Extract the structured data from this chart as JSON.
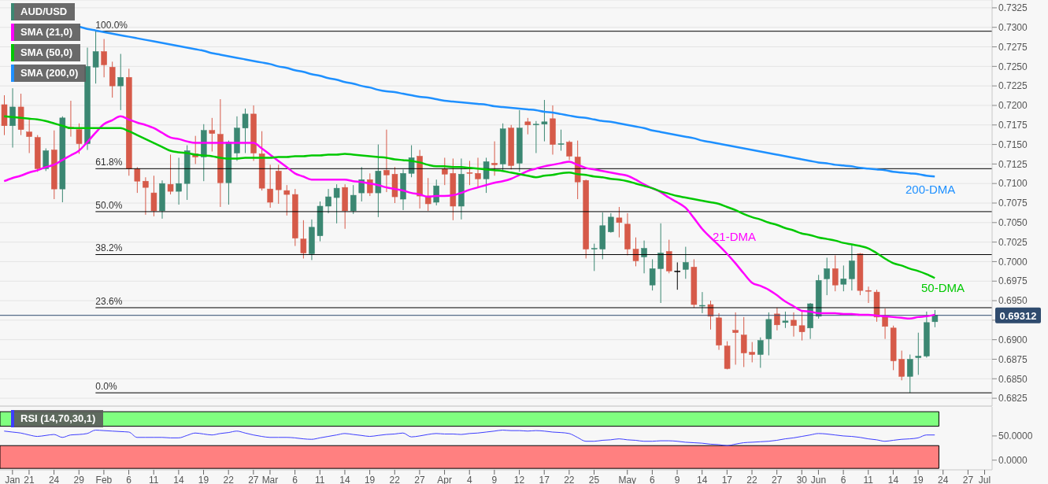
{
  "chart_data": [
    {
      "type": "candlestick",
      "categories": [
        null,
        null,
        null,
        null,
        null,
        null,
        null,
        null,
        null,
        null,
        null,
        null,
        null,
        null,
        null,
        null,
        null,
        null,
        null,
        null,
        null,
        null,
        null,
        null,
        null,
        null,
        null,
        null,
        null,
        null,
        null,
        null,
        null,
        null,
        null,
        null,
        null,
        null,
        null,
        null,
        null,
        null,
        null,
        null,
        null,
        null,
        null,
        null,
        null,
        null,
        null,
        null,
        null,
        null,
        null,
        null,
        null,
        null,
        null,
        null,
        null,
        null,
        null,
        null,
        null,
        null,
        null,
        null,
        null,
        null,
        null,
        null,
        null,
        null,
        null,
        null,
        null,
        null,
        null,
        null,
        null,
        null,
        null,
        null,
        null,
        null,
        null,
        null,
        null,
        null,
        null,
        null,
        null,
        null,
        null,
        null,
        null,
        null,
        null,
        null,
        null,
        null,
        null,
        null,
        null,
        null,
        null,
        null,
        null,
        null,
        null,
        null,
        null,
        null,
        null,
        null,
        null,
        null,
        null
      ],
      "series": [
        {
          "name": "AUD/USD",
          "color": "#3b8772",
          "ohlc": [
            [
              0.7201,
              0.7213,
              0.7162,
              0.7174
            ],
            [
              0.7174,
              0.7222,
              0.7146,
              0.7198
            ],
            [
              0.7198,
              0.7215,
              0.7162,
              0.7169
            ],
            [
              0.7166,
              0.7182,
              0.7139,
              0.716
            ],
            [
              0.7159,
              0.7162,
              0.7115,
              0.7119
            ],
            [
              0.7119,
              0.7145,
              0.7116,
              0.7142
            ],
            [
              0.7143,
              0.7168,
              0.708,
              0.7093
            ],
            [
              0.7093,
              0.7186,
              0.7076,
              0.7184
            ],
            [
              0.7172,
              0.7206,
              0.716,
              0.717
            ],
            [
              0.7169,
              0.7177,
              0.7138,
              0.7151
            ],
            [
              0.7151,
              0.7274,
              0.7143,
              0.725
            ],
            [
              0.7249,
              0.7295,
              0.7228,
              0.7269
            ],
            [
              0.7269,
              0.7285,
              0.7236,
              0.7252
            ],
            [
              0.7249,
              0.7256,
              0.721,
              0.7225
            ],
            [
              0.7225,
              0.7266,
              0.7194,
              0.7236
            ],
            [
              0.7236,
              0.7247,
              0.711,
              0.7119
            ],
            [
              0.7119,
              0.7121,
              0.7088,
              0.7103
            ],
            [
              0.7103,
              0.7108,
              0.706,
              0.7095
            ],
            [
              0.7088,
              0.711,
              0.7058,
              0.7065
            ],
            [
              0.7065,
              0.7104,
              0.7055,
              0.71
            ],
            [
              0.7099,
              0.7137,
              0.7086,
              0.709
            ],
            [
              0.709,
              0.7133,
              0.7073,
              0.71
            ],
            [
              0.71,
              0.7149,
              0.7079,
              0.7142
            ],
            [
              0.7138,
              0.7161,
              0.7125,
              0.7134
            ],
            [
              0.7134,
              0.7176,
              0.7103,
              0.7168
            ],
            [
              0.7168,
              0.7184,
              0.7141,
              0.7164
            ],
            [
              0.7163,
              0.7208,
              0.707,
              0.7101
            ],
            [
              0.7101,
              0.7155,
              0.7073,
              0.7153
            ],
            [
              0.7139,
              0.7186,
              0.7129,
              0.7171
            ],
            [
              0.7171,
              0.7196,
              0.7139,
              0.7189
            ],
            [
              0.7189,
              0.72,
              0.7129,
              0.7139
            ],
            [
              0.7138,
              0.7167,
              0.7091,
              0.7094
            ],
            [
              0.7093,
              0.7124,
              0.7069,
              0.7076
            ],
            [
              0.7116,
              0.7124,
              0.7074,
              0.7092
            ],
            [
              0.7091,
              0.7098,
              0.7059,
              0.7086
            ],
            [
              0.7086,
              0.7093,
              0.702,
              0.703
            ],
            [
              0.7029,
              0.7053,
              0.7004,
              0.7011
            ],
            [
              0.701,
              0.7054,
              0.7002,
              0.7044
            ],
            [
              0.7033,
              0.7077,
              0.7026,
              0.7071
            ],
            [
              0.7071,
              0.7093,
              0.7062,
              0.7083
            ],
            [
              0.7082,
              0.7099,
              0.7049,
              0.7094
            ],
            [
              0.7095,
              0.7099,
              0.7042,
              0.7065
            ],
            [
              0.7065,
              0.7098,
              0.7061,
              0.7085
            ],
            [
              0.7088,
              0.7121,
              0.7077,
              0.7105
            ],
            [
              0.7105,
              0.7113,
              0.7084,
              0.7088
            ],
            [
              0.7088,
              0.715,
              0.7057,
              0.7116
            ],
            [
              0.7117,
              0.7169,
              0.7089,
              0.7111
            ],
            [
              0.7112,
              0.7121,
              0.7075,
              0.7083
            ],
            [
              0.708,
              0.7118,
              0.7066,
              0.7113
            ],
            [
              0.7113,
              0.7149,
              0.7108,
              0.7133
            ],
            [
              0.7135,
              0.7143,
              0.7068,
              0.7084
            ],
            [
              0.7084,
              0.7107,
              0.7065,
              0.7074
            ],
            [
              0.7076,
              0.7105,
              0.7072,
              0.7097
            ],
            [
              0.7119,
              0.7133,
              0.7098,
              0.7112
            ],
            [
              0.7113,
              0.7132,
              0.7053,
              0.7071
            ],
            [
              0.7071,
              0.7132,
              0.7054,
              0.7112
            ],
            [
              0.7114,
              0.7129,
              0.7098,
              0.7113
            ],
            [
              0.7113,
              0.7133,
              0.7094,
              0.7106
            ],
            [
              0.7106,
              0.7133,
              0.7088,
              0.7128
            ],
            [
              0.7126,
              0.7154,
              0.711,
              0.7124
            ],
            [
              0.7125,
              0.7177,
              0.7116,
              0.717
            ],
            [
              0.7171,
              0.7175,
              0.7118,
              0.7123
            ],
            [
              0.7126,
              0.7194,
              0.7115,
              0.7171
            ],
            [
              0.7179,
              0.7184,
              0.7163,
              0.7175
            ],
            [
              0.7175,
              0.718,
              0.7139,
              0.7176
            ],
            [
              0.7176,
              0.7207,
              0.7154,
              0.7179
            ],
            [
              0.7183,
              0.72,
              0.7137,
              0.715
            ],
            [
              0.715,
              0.7169,
              0.7142,
              0.7151
            ],
            [
              0.7153,
              0.7155,
              0.713,
              0.7135
            ],
            [
              0.7134,
              0.7155,
              0.708,
              0.7102
            ],
            [
              0.7104,
              0.7105,
              0.7004,
              0.7016
            ],
            [
              0.7016,
              0.7023,
              0.6988,
              0.7017
            ],
            [
              0.7016,
              0.7063,
              0.7003,
              0.7046
            ],
            [
              0.7038,
              0.7062,
              0.7037,
              0.7057
            ],
            [
              0.7056,
              0.707,
              0.7031,
              0.705
            ],
            [
              0.7048,
              0.7062,
              0.7008,
              0.7016
            ],
            [
              0.7016,
              0.7031,
              0.6994,
              0.7001
            ],
            [
              0.7006,
              0.7027,
              0.6985,
              0.7017
            ],
            [
              0.697,
              0.7003,
              0.6963,
              0.6991
            ],
            [
              0.6991,
              0.7049,
              0.6947,
              0.7011
            ],
            [
              0.7013,
              0.7028,
              0.6985,
              0.6988
            ],
            [
              0.6988,
              0.6999,
              0.6964,
              0.6988
            ],
            [
              0.699,
              0.7019,
              0.6978,
              0.6999
            ],
            [
              0.6993,
              0.7003,
              0.6941,
              0.6945
            ],
            [
              0.6943,
              0.6961,
              0.6934,
              0.6944
            ],
            [
              0.6945,
              0.695,
              0.6913,
              0.693
            ],
            [
              0.6928,
              0.6934,
              0.6887,
              0.6893
            ],
            [
              0.6892,
              0.6898,
              0.6862,
              0.6863
            ],
            [
              0.6912,
              0.6935,
              0.6868,
              0.6909
            ],
            [
              0.6906,
              0.6929,
              0.6865,
              0.6883
            ],
            [
              0.6884,
              0.6897,
              0.6871,
              0.6881
            ],
            [
              0.6881,
              0.6903,
              0.6864,
              0.6899
            ],
            [
              0.6901,
              0.6935,
              0.688,
              0.6926
            ],
            [
              0.6933,
              0.6941,
              0.6912,
              0.6919
            ],
            [
              0.6922,
              0.6936,
              0.6915,
              0.6924
            ],
            [
              0.6925,
              0.6935,
              0.6904,
              0.6918
            ],
            [
              0.6918,
              0.6937,
              0.6899,
              0.691
            ],
            [
              0.6915,
              0.6947,
              0.6901,
              0.6946
            ],
            [
              0.693,
              0.6983,
              0.6927,
              0.6976
            ],
            [
              0.6978,
              0.7005,
              0.6957,
              0.6991
            ],
            [
              0.6991,
              0.7008,
              0.6962,
              0.697
            ],
            [
              0.6971,
              0.6995,
              0.6962,
              0.6978
            ],
            [
              0.6978,
              0.7022,
              0.6963,
              0.7001
            ],
            [
              0.701,
              0.7011,
              0.6957,
              0.6963
            ],
            [
              0.6963,
              0.6968,
              0.6947,
              0.6962
            ],
            [
              0.6961,
              0.6964,
              0.6923,
              0.6929
            ],
            [
              0.6929,
              0.694,
              0.6901,
              0.6917
            ],
            [
              0.6915,
              0.6918,
              0.6861,
              0.6873
            ],
            [
              0.6875,
              0.6886,
              0.6848,
              0.6853
            ],
            [
              0.6853,
              0.6881,
              0.6832,
              0.6875
            ],
            [
              0.6877,
              0.6909,
              0.6855,
              0.6879
            ],
            [
              0.6879,
              0.6936,
              0.6877,
              0.6922
            ],
            [
              0.6923,
              0.6938,
              0.6916,
              0.69312
            ],
            null,
            null,
            null,
            null,
            null,
            null
          ],
          "colors": [
            "#d65a49",
            "#3b8772",
            "#d65a49",
            "#d65a49",
            "#d65a49",
            "#3b8772",
            "#d65a49",
            "#3b8772",
            "#d65a49",
            "#d65a49",
            "#3b8772",
            "#3b8772",
            "#d65a49",
            "#d65a49",
            "#3b8772",
            "#d65a49",
            "#d65a49",
            "#d65a49",
            "#d65a49",
            "#3b8772",
            "#d65a49",
            "#3b8772",
            "#3b8772",
            "#d65a49",
            "#3b8772",
            "#d65a49",
            "#d65a49",
            "#3b8772",
            "#3b8772",
            "#3b8772",
            "#d65a49",
            "#d65a49",
            "#d65a49",
            "#d65a49",
            "#d65a49",
            "#d65a49",
            "#d65a49",
            "#3b8772",
            "#3b8772",
            "#3b8772",
            "#3b8772",
            "#d65a49",
            "#3b8772",
            "#3b8772",
            "#d65a49",
            "#3b8772",
            "#d65a49",
            "#d65a49",
            "#3b8772",
            "#3b8772",
            "#d65a49",
            "#d65a49",
            "#3b8772",
            "#d65a49",
            "#d65a49",
            "#3b8772",
            "#d65a49",
            "#d65a49",
            "#3b8772",
            "#d65a49",
            "#3b8772",
            "#d65a49",
            "#3b8772",
            "#d65a49",
            "#3b8772",
            "#3b8772",
            "#d65a49",
            "#3b8772",
            "#d65a49",
            "#d65a49",
            "#d65a49",
            "#3b8772",
            "#3b8772",
            "#3b8772",
            "#d65a49",
            "#d65a49",
            "#d65a49",
            "#3b8772",
            "#3b8772",
            "#3b8772",
            "#d65a49",
            "#000000",
            "#3b8772",
            "#d65a49",
            "#3b8772",
            "#d65a49",
            "#d65a49",
            "#d65a49",
            "#d65a49",
            "#d65a49",
            "#d65a49",
            "#3b8772",
            "#3b8772",
            "#d65a49",
            "#3b8772",
            "#d65a49",
            "#d65a49",
            "#3b8772",
            "#3b8772",
            "#3b8772",
            "#d65a49",
            "#3b8772",
            "#3b8772",
            "#d65a49",
            "#d65a49",
            "#d65a49",
            "#d65a49",
            "#d65a49",
            "#d65a49",
            "#3b8772",
            "#3b8772",
            "#3b8772",
            "#3b8772",
            null,
            null,
            null,
            null,
            null,
            null
          ]
        },
        {
          "name": "SMA (21,0)",
          "type": "line",
          "color": "#ff00ff",
          "values": [
            0.7103,
            0.7107,
            0.711,
            0.7114,
            0.7117,
            0.7121,
            0.7124,
            0.713,
            0.7136,
            0.7142,
            0.7153,
            0.7165,
            0.7176,
            0.7181,
            0.7186,
            0.7182,
            0.7178,
            0.7175,
            0.7171,
            0.7165,
            0.7159,
            0.7157,
            0.7154,
            0.7152,
            0.7152,
            0.7152,
            0.7152,
            0.7152,
            0.7152,
            0.7152,
            0.7152,
            0.7145,
            0.7137,
            0.7129,
            0.7121,
            0.7113,
            0.7109,
            0.7105,
            0.7105,
            0.7105,
            0.7105,
            0.7105,
            0.7103,
            0.7102,
            0.71,
            0.7098,
            0.7095,
            0.7093,
            0.7091,
            0.7088,
            0.7086,
            0.7083,
            0.7084,
            0.7084,
            0.7085,
            0.7088,
            0.7092,
            0.7095,
            0.7098,
            0.7101,
            0.7103,
            0.7106,
            0.7111,
            0.7116,
            0.7119,
            0.7122,
            0.7124,
            0.7126,
            0.7128,
            0.7124,
            0.712,
            0.7118,
            0.7116,
            0.7114,
            0.7112,
            0.711,
            0.7105,
            0.7099,
            0.7094,
            0.7089,
            0.7082,
            0.7076,
            0.7069,
            0.7056,
            0.7042,
            0.7031,
            0.7021,
            0.701,
            0.6998,
            0.6985,
            0.6973,
            0.6969,
            0.6964,
            0.6957,
            0.6949,
            0.6943,
            0.6937,
            0.6936,
            0.6934,
            0.6934,
            0.6934,
            0.6933,
            0.6933,
            0.6932,
            0.6932,
            0.6931,
            0.693,
            0.6929,
            0.6928,
            0.6927,
            0.6929,
            0.693,
            0.6932,
            null,
            null,
            null,
            null,
            null,
            null
          ]
        },
        {
          "name": "SMA (50,0)",
          "type": "line",
          "color": "#00c800",
          "values": [
            0.7186,
            0.7185,
            0.7184,
            0.7183,
            0.7182,
            0.718,
            0.7177,
            0.7174,
            0.7171,
            0.7171,
            0.7171,
            0.7171,
            0.7171,
            0.7171,
            0.7171,
            0.7167,
            0.7162,
            0.7157,
            0.7152,
            0.7147,
            0.7142,
            0.714,
            0.7139,
            0.7137,
            0.7136,
            0.7135,
            0.7133,
            0.7132,
            0.7132,
            0.7133,
            0.7133,
            0.7133,
            0.7133,
            0.7134,
            0.7134,
            0.7135,
            0.7135,
            0.7136,
            0.7136,
            0.7137,
            0.7137,
            0.7138,
            0.7137,
            0.7136,
            0.7135,
            0.7134,
            0.7133,
            0.7131,
            0.713,
            0.7129,
            0.7127,
            0.7124,
            0.7122,
            0.7122,
            0.7121,
            0.7121,
            0.712,
            0.7119,
            0.7118,
            0.7117,
            0.7116,
            0.7114,
            0.7112,
            0.711,
            0.7108,
            0.711,
            0.7111,
            0.7113,
            0.7114,
            0.7112,
            0.7111,
            0.7109,
            0.7108,
            0.7106,
            0.7105,
            0.7103,
            0.71,
            0.7097,
            0.7094,
            0.709,
            0.7087,
            0.7084,
            0.7082,
            0.708,
            0.7078,
            0.7076,
            0.7074,
            0.707,
            0.7066,
            0.7061,
            0.7057,
            0.7054,
            0.705,
            0.7047,
            0.7043,
            0.704,
            0.7036,
            0.7034,
            0.7031,
            0.7029,
            0.7027,
            0.7024,
            0.7022,
            0.702,
            0.7017,
            0.7011,
            0.7004,
            0.6998,
            0.6995,
            0.6991,
            0.6988,
            0.6984,
            0.6979,
            null,
            null,
            null,
            null,
            null,
            null
          ]
        },
        {
          "name": "SMA (200,0)",
          "type": "line",
          "color": "#1e90ff",
          "values": [
            null,
            null,
            null,
            null,
            null,
            null,
            null,
            null,
            null,
            0.7301,
            0.7298,
            0.7296,
            0.7294,
            0.7292,
            0.729,
            0.7288,
            0.7286,
            0.7284,
            0.7282,
            0.728,
            0.7278,
            0.7276,
            0.7274,
            0.7272,
            0.727,
            0.7267,
            0.7265,
            0.7263,
            0.7261,
            0.7259,
            0.7257,
            0.7255,
            0.7253,
            0.725,
            0.7248,
            0.7245,
            0.7243,
            0.724,
            0.7238,
            0.7235,
            0.7233,
            0.723,
            0.7228,
            0.7225,
            0.7223,
            0.722,
            0.7218,
            0.7217,
            0.7215,
            0.7213,
            0.7211,
            0.721,
            0.7208,
            0.7206,
            0.7205,
            0.7204,
            0.7203,
            0.7202,
            0.7201,
            0.7199,
            0.7198,
            0.7197,
            0.7196,
            0.7195,
            0.7194,
            0.7192,
            0.7191,
            0.7189,
            0.7187,
            0.7185,
            0.7184,
            0.7182,
            0.718,
            0.7179,
            0.7177,
            0.7175,
            0.7173,
            0.7171,
            0.7168,
            0.7166,
            0.7164,
            0.7162,
            0.716,
            0.7158,
            0.7155,
            0.7153,
            0.7151,
            0.7149,
            0.7147,
            0.7145,
            0.7143,
            0.7141,
            0.7139,
            0.7137,
            0.7135,
            0.7133,
            0.7131,
            0.7129,
            0.7127,
            0.7126,
            0.7124,
            0.7123,
            0.7122,
            0.712,
            0.7119,
            0.7118,
            0.7117,
            0.7115,
            0.7114,
            0.7113,
            0.7112,
            0.711,
            0.7109,
            null,
            null,
            null,
            null,
            null,
            null
          ]
        }
      ],
      "ylim": [
        0.6815,
        0.7335
      ],
      "yticks": [
        {
          "value": 0.6825,
          "label": "0.6825"
        },
        {
          "value": 0.685,
          "label": "0.6850"
        },
        {
          "value": 0.6875,
          "label": "0.6875"
        },
        {
          "value": 0.69,
          "label": "0.6900"
        },
        {
          "value": 0.6925,
          "label": null
        },
        {
          "value": 0.695,
          "label": "0.6950"
        },
        {
          "value": 0.6975,
          "label": "0.6975"
        },
        {
          "value": 0.7,
          "label": "0.7000"
        },
        {
          "value": 0.7025,
          "label": "0.7025"
        },
        {
          "value": 0.705,
          "label": "0.7050"
        },
        {
          "value": 0.7075,
          "label": "0.7075"
        },
        {
          "value": 0.71,
          "label": "0.7100"
        },
        {
          "value": 0.7125,
          "label": "0.7125"
        },
        {
          "value": 0.715,
          "label": "0.7150"
        },
        {
          "value": 0.7175,
          "label": "0.7175"
        },
        {
          "value": 0.72,
          "label": "0.7200"
        },
        {
          "value": 0.7225,
          "label": "0.7225"
        },
        {
          "value": 0.725,
          "label": "0.7250"
        },
        {
          "value": 0.7275,
          "label": "0.7275"
        },
        {
          "value": 0.73,
          "label": "0.7300"
        },
        {
          "value": 0.7325,
          "label": "0.7325"
        }
      ],
      "ref_lines": [
        {
          "axis": "y",
          "value": 0.7295,
          "color": "#000000"
        },
        {
          "axis": "y",
          "value": 0.7119,
          "color": "#000000"
        },
        {
          "axis": "y",
          "value": 0.7064,
          "color": "#000000"
        },
        {
          "axis": "y",
          "value": 0.7009,
          "color": "#000000"
        },
        {
          "axis": "y",
          "value": 0.6941,
          "color": "#000000"
        },
        {
          "axis": "y",
          "value": 0.6832,
          "color": "#000000"
        },
        {
          "axis": "y",
          "value": 0.69312,
          "label": "0.69312",
          "color": "#2f4b6e"
        }
      ],
      "annotations": [
        "100.0%",
        "61.8%",
        "50.0%",
        "38.2%",
        "23.6%",
        "0.0%",
        "200-DMA",
        "50-DMA",
        "21-DMA"
      ],
      "grid": "y",
      "legend": "top left",
      "tick_labels": "y"
    },
    {
      "type": "line",
      "categories": [
        null,
        "Jan",
        null,
        "21",
        null,
        null,
        "24",
        null,
        null,
        "29",
        null,
        null,
        "Feb",
        null,
        null,
        "6",
        null,
        null,
        "11",
        null,
        null,
        "14",
        null,
        null,
        "19",
        null,
        null,
        "22",
        null,
        null,
        "27",
        null,
        "Mar",
        null,
        null,
        "6",
        null,
        null,
        "11",
        null,
        null,
        "14",
        null,
        null,
        "19",
        null,
        null,
        "22",
        null,
        null,
        "27",
        null,
        null,
        "Apr",
        null,
        null,
        "4",
        null,
        null,
        "9",
        null,
        null,
        "12",
        null,
        null,
        "17",
        null,
        null,
        "22",
        null,
        null,
        "25",
        null,
        null,
        null,
        "May",
        null,
        null,
        "6",
        null,
        null,
        "9",
        null,
        null,
        "14",
        null,
        null,
        "17",
        null,
        null,
        "22",
        null,
        null,
        "27",
        null,
        null,
        "30",
        null,
        "Jun",
        null,
        null,
        "6",
        null,
        null,
        "11",
        null,
        null,
        "14",
        null,
        null,
        "19",
        null,
        null,
        "24",
        null,
        null,
        "27",
        null,
        "Jul"
      ],
      "series": [
        {
          "name": "RSI (14,70,30,1)",
          "color": "#3d3dff",
          "values": [
            60,
            58,
            56,
            52,
            49,
            51,
            53,
            47,
            52,
            53,
            55,
            62,
            61,
            60,
            59,
            58,
            47,
            47,
            47,
            47,
            46,
            46,
            51,
            56,
            54,
            52,
            55,
            57,
            60,
            56,
            52,
            49,
            47,
            47,
            47,
            46,
            44,
            43,
            46,
            49,
            52,
            55,
            53,
            51,
            49,
            51,
            53,
            54,
            56,
            48,
            50,
            53,
            55,
            54,
            54,
            53,
            55,
            56,
            58,
            60,
            62,
            61,
            61,
            60,
            61,
            60,
            58,
            57,
            55,
            47,
            39,
            39,
            41,
            42,
            44,
            42,
            41,
            39,
            39,
            40,
            40,
            39,
            37,
            36,
            35,
            33,
            32,
            30,
            33,
            36,
            37,
            38,
            39,
            41,
            44,
            46,
            49,
            52,
            55,
            54,
            52,
            50,
            49,
            47,
            44,
            42,
            39,
            41,
            43,
            44,
            46,
            52,
            52,
            null,
            null,
            null,
            null,
            null,
            null
          ]
        }
      ],
      "ylim": [
        -20,
        110
      ],
      "yticks": [
        {
          "value": 0,
          "label": "0.0000"
        },
        {
          "value": 50,
          "label": "50.0000"
        }
      ],
      "bands": [
        {
          "axis": "y",
          "from": 70,
          "to": 100,
          "color": "#80ff80"
        },
        {
          "axis": "y",
          "from": -17,
          "to": 30,
          "color": "#ff8080"
        }
      ],
      "legend": "top left"
    }
  ]
}
